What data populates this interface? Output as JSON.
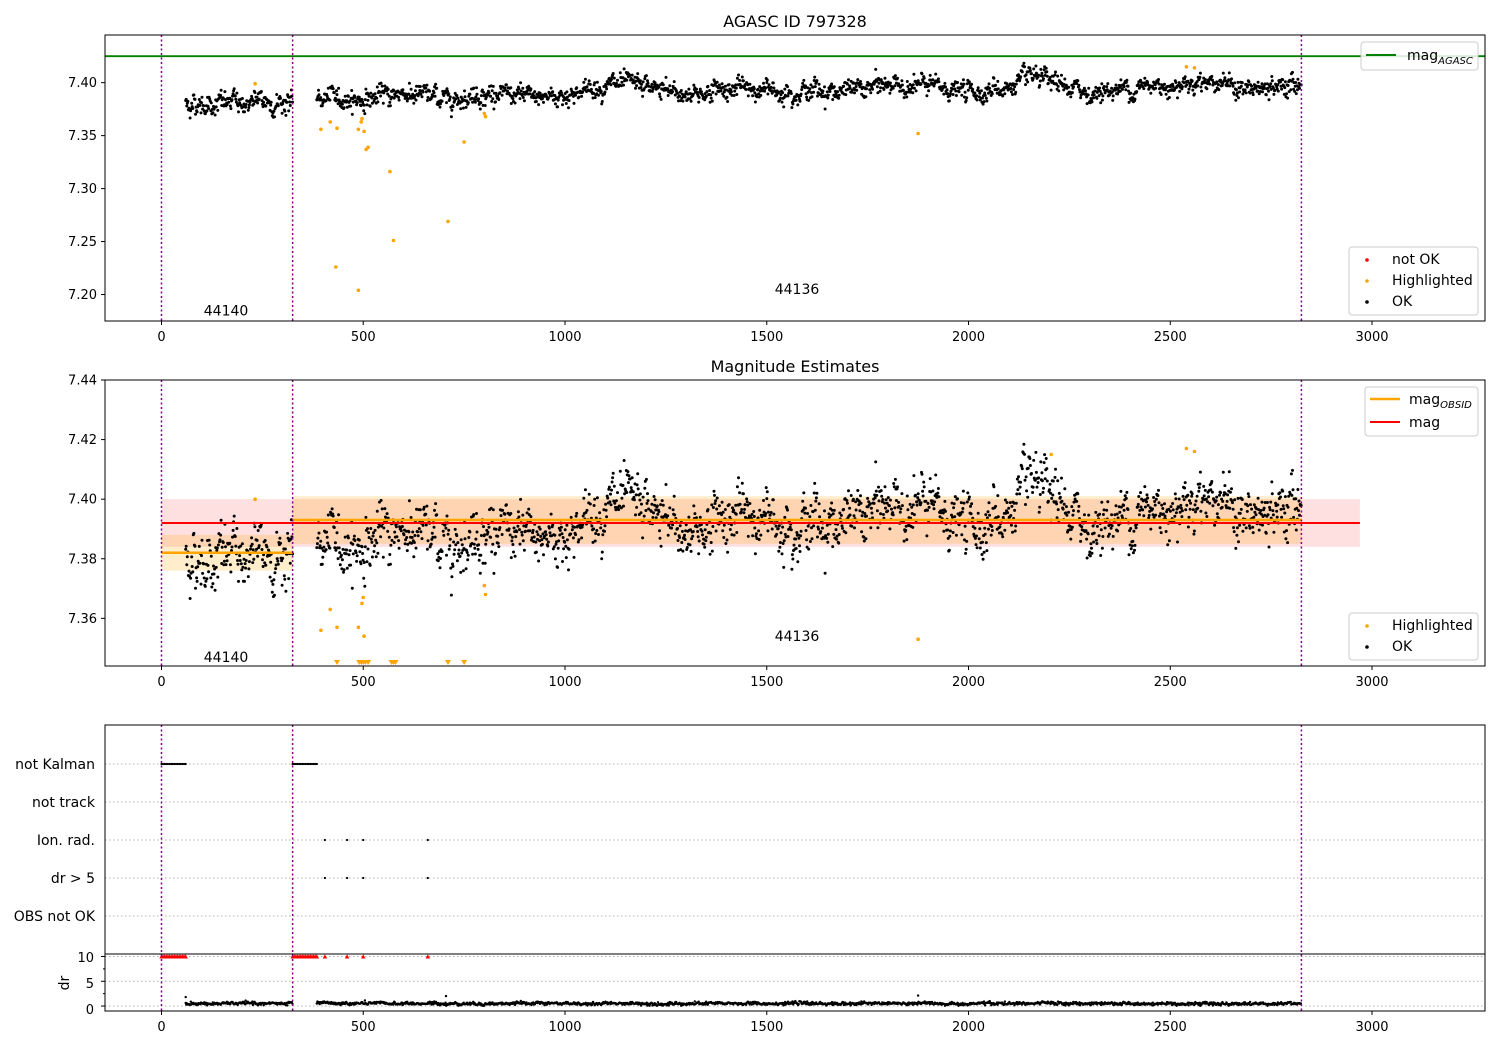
{
  "figure": {
    "top": {
      "title": "AGASC ID 797328",
      "xlim": [
        -140,
        3280
      ],
      "ylim": [
        7.175,
        7.445
      ],
      "yticks": [
        7.2,
        7.25,
        7.3,
        7.35,
        7.4
      ],
      "ytick_labels": [
        "7.20",
        "7.25",
        "7.30",
        "7.35",
        "7.40"
      ],
      "xticks": [
        0,
        500,
        1000,
        1500,
        2000,
        2500,
        3000
      ],
      "xtick_labels": [
        "0",
        "500",
        "1000",
        "1500",
        "2000",
        "2500",
        "3000"
      ],
      "mag_agasc": 7.425,
      "obsid_labels": [
        {
          "text": "44140",
          "x": 160,
          "y": 7.185
        },
        {
          "text": "44136",
          "x": 1575,
          "y": 7.205
        }
      ],
      "legend_upper": [
        {
          "label": "mag",
          "subscript": "AGASC",
          "color": "#008000"
        }
      ],
      "legend_lower": [
        {
          "label": "not OK",
          "color": "#ff0000"
        },
        {
          "label": "Highlighted",
          "color": "#ffa500"
        },
        {
          "label": "OK",
          "color": "#000000"
        }
      ]
    },
    "middle": {
      "title": "Magnitude Estimates",
      "xlim": [
        -140,
        3280
      ],
      "ylim": [
        7.344,
        7.44
      ],
      "yticks": [
        7.36,
        7.38,
        7.4,
        7.42,
        7.44
      ],
      "ytick_labels": [
        "7.36",
        "7.38",
        "7.40",
        "7.42",
        "7.44"
      ],
      "xticks": [
        0,
        500,
        1000,
        1500,
        2000,
        2500,
        3000
      ],
      "xtick_labels": [
        "0",
        "500",
        "1000",
        "1500",
        "2000",
        "2500",
        "3000"
      ],
      "obsid_labels": [
        {
          "text": "44140",
          "x": 160,
          "y": 7.347
        },
        {
          "text": "44136",
          "x": 1575,
          "y": 7.354
        }
      ],
      "legend_upper": [
        {
          "label": "mag",
          "subscript": "OBSID",
          "color": "#ffa500"
        },
        {
          "label": "mag",
          "subscript": "",
          "color": "#ff0000"
        }
      ],
      "legend_lower": [
        {
          "label": "Highlighted",
          "color": "#ffa500"
        },
        {
          "label": "OK",
          "color": "#000000"
        }
      ]
    },
    "bottom": {
      "xlim": [
        -140,
        3280
      ],
      "flag_labels": [
        "not Kalman",
        "not track",
        "Ion. rad.",
        "dr > 5",
        "OBS not OK"
      ],
      "dr_ylabel": "dr",
      "dr_ytick_labels": [
        "10",
        "5",
        "0"
      ],
      "dr_yticks": [
        10,
        5,
        0
      ],
      "dr_ylim": [
        -1,
        10.5
      ],
      "xticks": [
        0,
        500,
        1000,
        1500,
        2000,
        2500,
        3000
      ],
      "xtick_labels": [
        "0",
        "500",
        "1000",
        "1500",
        "2000",
        "2500",
        "3000"
      ]
    },
    "colors": {
      "ok": "#000000",
      "highlighted": "#ffa500",
      "not_ok": "#ff0000",
      "obs_boundary": "#800080",
      "mag_agasc": "#008000",
      "mag_mean": "#ff0000",
      "mag_obsid": "#ffa500"
    }
  },
  "chart_data": [
    {
      "type": "scatter",
      "title": "AGASC ID 797328",
      "xlabel": "",
      "ylabel": "",
      "xlim": [
        -140,
        3280
      ],
      "ylim": [
        7.175,
        7.445
      ],
      "obs_boundaries": [
        0,
        325,
        2825
      ],
      "hlines": [
        {
          "name": "mag_AGASC",
          "y": 7.425,
          "color": "#008000"
        }
      ],
      "ok_segments": [
        {
          "x_start": 60,
          "x_end": 325,
          "mean_start": 7.38,
          "mean_end": 7.382,
          "scatter": 0.009
        },
        {
          "x_start": 385,
          "x_end": 2825,
          "wave": [
            [
              385,
              7.386
            ],
            [
              500,
              7.384
            ],
            [
              600,
              7.391
            ],
            [
              700,
              7.385
            ],
            [
              800,
              7.39
            ],
            [
              900,
              7.386
            ],
            [
              1000,
              7.388
            ],
            [
              1100,
              7.398
            ],
            [
              1200,
              7.396
            ],
            [
              1300,
              7.388
            ],
            [
              1400,
              7.395
            ],
            [
              1500,
              7.393
            ],
            [
              1600,
              7.393
            ],
            [
              1700,
              7.392
            ],
            [
              1800,
              7.398
            ],
            [
              1900,
              7.397
            ],
            [
              2000,
              7.391
            ],
            [
              2100,
              7.395
            ],
            [
              2150,
              7.404
            ],
            [
              2200,
              7.399
            ],
            [
              2300,
              7.39
            ],
            [
              2400,
              7.395
            ],
            [
              2500,
              7.398
            ],
            [
              2600,
              7.403
            ],
            [
              2700,
              7.392
            ],
            [
              2825,
              7.398
            ]
          ],
          "scatter": 0.008
        }
      ],
      "highlighted_points": [
        [
          232,
          7.399
        ],
        [
          395,
          7.356
        ],
        [
          418,
          7.363
        ],
        [
          435,
          7.357
        ],
        [
          488,
          7.356
        ],
        [
          495,
          7.363
        ],
        [
          497,
          7.366
        ],
        [
          502,
          7.354
        ],
        [
          507,
          7.337
        ],
        [
          512,
          7.339
        ],
        [
          432,
          7.226
        ],
        [
          488,
          7.204
        ],
        [
          566,
          7.316
        ],
        [
          575,
          7.251
        ],
        [
          710,
          7.269
        ],
        [
          750,
          7.344
        ],
        [
          800,
          7.371
        ],
        [
          803,
          7.368
        ],
        [
          1875,
          7.352
        ],
        [
          2540,
          7.415
        ],
        [
          2560,
          7.414
        ]
      ]
    },
    {
      "type": "scatter",
      "title": "Magnitude Estimates",
      "xlabel": "",
      "ylabel": "",
      "xlim": [
        -140,
        3280
      ],
      "ylim": [
        7.344,
        7.44
      ],
      "obs_boundaries": [
        0,
        325,
        2825
      ],
      "mag": {
        "y": 7.392,
        "band": [
          7.384,
          7.4
        ],
        "x_range": [
          0,
          2970
        ]
      },
      "mag_obsid": [
        {
          "x_range": [
            0,
            325
          ],
          "y": 7.382,
          "band": [
            7.376,
            7.388
          ]
        },
        {
          "x_range": [
            325,
            2825
          ],
          "y": 7.393,
          "band": [
            7.385,
            7.401
          ]
        }
      ],
      "ok_segments": [
        {
          "x_start": 60,
          "x_end": 325,
          "mean_start": 7.38,
          "mean_end": 7.382,
          "scatter": 0.009
        },
        {
          "x_start": 385,
          "x_end": 2825,
          "wave": [
            [
              385,
              7.386
            ],
            [
              500,
              7.384
            ],
            [
              600,
              7.391
            ],
            [
              700,
              7.385
            ],
            [
              800,
              7.39
            ],
            [
              900,
              7.386
            ],
            [
              1000,
              7.388
            ],
            [
              1100,
              7.398
            ],
            [
              1200,
              7.396
            ],
            [
              1300,
              7.388
            ],
            [
              1400,
              7.395
            ],
            [
              1500,
              7.393
            ],
            [
              1600,
              7.393
            ],
            [
              1700,
              7.392
            ],
            [
              1800,
              7.398
            ],
            [
              1900,
              7.397
            ],
            [
              2000,
              7.391
            ],
            [
              2100,
              7.395
            ],
            [
              2150,
              7.404
            ],
            [
              2200,
              7.399
            ],
            [
              2300,
              7.39
            ],
            [
              2400,
              7.395
            ],
            [
              2500,
              7.398
            ],
            [
              2600,
              7.403
            ],
            [
              2700,
              7.392
            ],
            [
              2825,
              7.398
            ]
          ],
          "scatter": 0.008
        }
      ],
      "highlighted_points": [
        [
          232,
          7.4
        ],
        [
          395,
          7.356
        ],
        [
          418,
          7.363
        ],
        [
          435,
          7.357
        ],
        [
          488,
          7.357
        ],
        [
          497,
          7.365
        ],
        [
          500,
          7.367
        ],
        [
          502,
          7.354
        ],
        [
          800,
          7.371
        ],
        [
          803,
          7.368
        ],
        [
          1875,
          7.353
        ],
        [
          2205,
          7.415
        ],
        [
          2540,
          7.417
        ],
        [
          2560,
          7.416
        ]
      ],
      "below_range_points": [
        435,
        490,
        495,
        500,
        505,
        512,
        570,
        575,
        580,
        710,
        750
      ]
    },
    {
      "type": "scatter",
      "title": "",
      "xlabel": "",
      "xlim": [
        -140,
        3280
      ],
      "obs_boundaries": [
        0,
        325,
        2825
      ],
      "flags": {
        "not Kalman": {
          "ranges": [
            [
              0,
              60
            ],
            [
              325,
              385
            ]
          ]
        },
        "not track": {
          "points": []
        },
        "Ion. rad.": {
          "points": [
            405,
            460,
            500,
            660
          ]
        },
        "dr > 5": {
          "points": [
            405,
            460,
            500,
            660
          ]
        },
        "OBS not OK": {
          "points": []
        }
      },
      "dr": {
        "ylabel": "dr",
        "ylim": [
          -1,
          10.5
        ],
        "capped_points_not_ok": {
          "ranges": [
            [
              0,
              60
            ],
            [
              325,
              385
            ]
          ],
          "points": [
            405,
            460,
            500,
            660
          ],
          "value": 10
        },
        "ok_ranges": [
          [
            60,
            325
          ],
          [
            385,
            2825
          ]
        ],
        "ok_typical": 0.5,
        "spikes": [
          [
            60,
            1.8
          ],
          [
            705,
            2.0
          ],
          [
            1875,
            2.1
          ]
        ]
      }
    }
  ]
}
